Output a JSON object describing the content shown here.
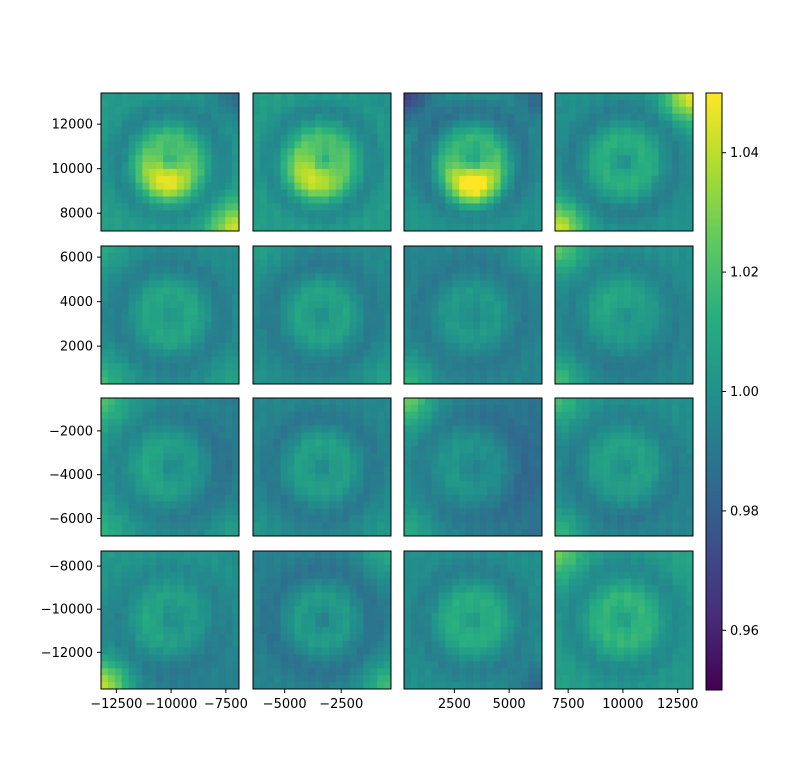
{
  "chart_data": {
    "type": "heatmap",
    "title": "",
    "layout": "4x4 grid of heatmap panels with shared colorbar on the right",
    "colormap": "viridis",
    "color_range": [
      0.95,
      1.05
    ],
    "colorbar_ticks": [
      "1.04",
      "1.02",
      "1.00",
      "0.98",
      "0.96"
    ],
    "colorbar_tick_values": [
      1.04,
      1.02,
      1.0,
      0.98,
      0.96
    ],
    "y_axis": {
      "ticks_by_row": [
        {
          "labels": [
            "12000",
            "10000",
            "8000"
          ],
          "values": [
            12000,
            10000,
            8000
          ],
          "range": [
            7200,
            13400
          ]
        },
        {
          "labels": [
            "6000",
            "4000",
            "2000"
          ],
          "values": [
            6000,
            4000,
            2000
          ],
          "range": [
            300,
            6500
          ]
        },
        {
          "labels": [
            "−2000",
            "−4000",
            "−6000"
          ],
          "values": [
            -2000,
            -4000,
            -6000
          ],
          "range": [
            -6800,
            -500
          ]
        },
        {
          "labels": [
            "−8000",
            "−10000",
            "−12000"
          ],
          "values": [
            -8000,
            -10000,
            -12000
          ],
          "range": [
            -13700,
            -7300
          ]
        }
      ]
    },
    "x_axis": {
      "ticks_by_col": [
        {
          "labels": [
            "−12500",
            "−10000",
            "−7500"
          ],
          "values": [
            -12500,
            -10000,
            -7500
          ],
          "range": [
            -13200,
            -6900
          ]
        },
        {
          "labels": [
            "−5000",
            "−2500"
          ],
          "values": [
            -5000,
            -2500
          ],
          "range": [
            -6400,
            -300
          ]
        },
        {
          "labels": [
            "2500",
            "5000"
          ],
          "values": [
            2500,
            5000
          ],
          "range": [
            200,
            6500
          ]
        },
        {
          "labels": [
            "7500",
            "10000",
            "12500"
          ],
          "values": [
            7500,
            10000,
            12500
          ],
          "range": [
            6900,
            13200
          ]
        }
      ]
    },
    "panels": [
      [
        {
          "base": 1.004,
          "bump": 0.035,
          "bumpAmp": 0.004,
          "ring": 0.012,
          "dip": -0.015,
          "corners": [
            0.0,
            -0.02,
            0.002,
            0.04
          ],
          "slope": [
            0.0,
            0.0
          ],
          "bumpPos": [
            0.48,
            0.6
          ]
        },
        {
          "base": 1.005,
          "bump": 0.03,
          "bumpAmp": 0.004,
          "ring": 0.012,
          "dip": -0.015,
          "corners": [
            0.0,
            -0.006,
            0.0,
            0.0
          ],
          "slope": [
            0.0,
            0.0
          ],
          "bumpPos": [
            0.45,
            0.58
          ]
        },
        {
          "base": 1.0,
          "bump": 0.044,
          "bumpAmp": 0.004,
          "ring": 0.014,
          "dip": -0.014,
          "corners": [
            -0.03,
            -0.018,
            0.004,
            0.0
          ],
          "slope": [
            0.0,
            0.0
          ],
          "bumpPos": [
            0.5,
            0.65
          ]
        },
        {
          "base": 1.0,
          "bump": 0.008,
          "bumpAmp": 0.004,
          "ring": 0.01,
          "dip": -0.01,
          "corners": [
            0.0,
            0.048,
            0.045,
            0.0
          ],
          "slope": [
            0.0,
            0.0
          ],
          "bumpPos": [
            0.5,
            0.5
          ]
        }
      ],
      [
        {
          "base": 0.998,
          "bump": 0.008,
          "bumpAmp": 0.004,
          "ring": 0.008,
          "dip": -0.006,
          "corners": [
            0.012,
            0.0,
            0.018,
            0.01
          ],
          "slope": [
            0.0,
            0.0
          ],
          "bumpPos": [
            0.5,
            0.5
          ]
        },
        {
          "base": 0.997,
          "bump": 0.007,
          "bumpAmp": 0.004,
          "ring": 0.008,
          "dip": -0.006,
          "corners": [
            0.01,
            0.0,
            0.004,
            0.01
          ],
          "slope": [
            0.0,
            0.0
          ],
          "bumpPos": [
            0.5,
            0.5
          ]
        },
        {
          "base": 0.995,
          "bump": 0.006,
          "bumpAmp": 0.004,
          "ring": 0.006,
          "dip": -0.005,
          "corners": [
            0.0,
            0.014,
            0.02,
            0.0
          ],
          "slope": [
            0.0,
            0.0
          ],
          "bumpPos": [
            0.5,
            0.5
          ]
        },
        {
          "base": 0.997,
          "bump": 0.009,
          "bumpAmp": 0.004,
          "ring": 0.006,
          "dip": -0.006,
          "corners": [
            0.025,
            0.0,
            0.025,
            0.002
          ],
          "slope": [
            0.0,
            -0.006
          ],
          "bumpPos": [
            0.45,
            0.45
          ]
        }
      ],
      [
        {
          "base": 0.997,
          "bump": 0.006,
          "bumpAmp": 0.004,
          "ring": 0.007,
          "dip": -0.007,
          "corners": [
            0.018,
            0.0,
            0.012,
            0.014
          ],
          "slope": [
            -0.01,
            0.0
          ],
          "bumpPos": [
            0.45,
            0.5
          ]
        },
        {
          "base": 0.996,
          "bump": 0.006,
          "bumpAmp": 0.004,
          "ring": 0.008,
          "dip": -0.006,
          "corners": [
            0.0,
            0.0,
            0.006,
            0.008
          ],
          "slope": [
            0.0,
            0.0
          ],
          "bumpPos": [
            0.5,
            0.5
          ]
        },
        {
          "base": 0.993,
          "bump": 0.005,
          "bumpAmp": 0.004,
          "ring": 0.006,
          "dip": -0.005,
          "corners": [
            0.028,
            0.0,
            0.012,
            0.0
          ],
          "slope": [
            -0.012,
            0.0
          ],
          "bumpPos": [
            0.5,
            0.5
          ]
        },
        {
          "base": 0.997,
          "bump": 0.007,
          "bumpAmp": 0.004,
          "ring": 0.007,
          "dip": -0.006,
          "corners": [
            0.018,
            0.0,
            0.022,
            0.0
          ],
          "slope": [
            0.0,
            -0.006
          ],
          "bumpPos": [
            0.5,
            0.5
          ]
        }
      ],
      [
        {
          "base": 0.998,
          "bump": 0.007,
          "bumpAmp": 0.004,
          "ring": 0.006,
          "dip": -0.006,
          "corners": [
            0.0,
            -0.004,
            0.048,
            0.0
          ],
          "slope": [
            0.0,
            -0.01
          ],
          "bumpPos": [
            0.4,
            0.55
          ]
        },
        {
          "base": 0.994,
          "bump": 0.006,
          "bumpAmp": 0.004,
          "ring": 0.008,
          "dip": -0.008,
          "corners": [
            0.0,
            0.016,
            0.0,
            0.025
          ],
          "slope": [
            0.0,
            0.0
          ],
          "bumpPos": [
            0.5,
            0.5
          ]
        },
        {
          "base": 0.999,
          "bump": 0.012,
          "bumpAmp": 0.004,
          "ring": 0.008,
          "dip": -0.01,
          "corners": [
            0.0,
            0.0,
            0.0,
            -0.016
          ],
          "slope": [
            0.0,
            0.0
          ],
          "bumpPos": [
            0.5,
            0.5
          ]
        },
        {
          "base": 1.003,
          "bump": 0.01,
          "bumpAmp": 0.004,
          "ring": 0.008,
          "dip": -0.01,
          "corners": [
            0.024,
            0.006,
            0.004,
            0.0
          ],
          "slope": [
            0.0,
            0.0
          ],
          "bumpPos": [
            0.5,
            0.5
          ]
        }
      ]
    ]
  }
}
